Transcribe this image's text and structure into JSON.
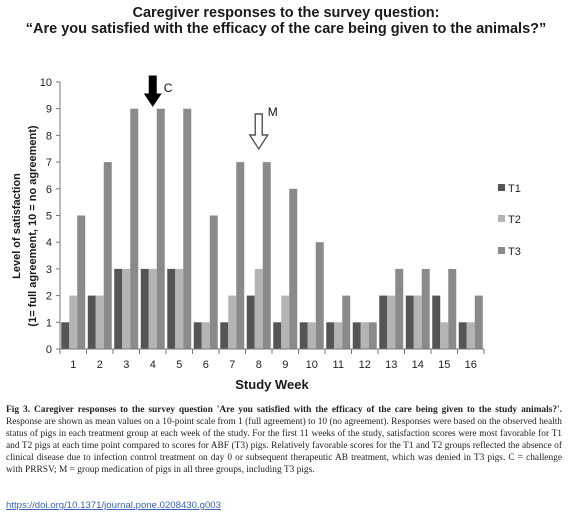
{
  "figure": {
    "caption_label": "Fig 3.",
    "caption_heading": "Caregiver responses to the survey question 'Are you satisfied with the efficacy of the care being given to the study animals?'.",
    "caption_body": "Response are shown as mean values on a 10-point scale from 1 (full agreement) to 10 (no agreement). Responses were based on the observed health status of pigs in each treatment group at each week of the study. For the first 11 weeks of the study, satisfaction scores were most favorable for T1 and T2 pigs at each time point compared to scores for ABF (T3) pigs. Relatively favorable scores for the T1 and T2 groups reflected the absence of clinical disease due to infection control treatment on day 0 or subsequent therapeutic AB treatment, which was denied in T3 pigs. C = challenge with PRRSV; M = group medication of pigs in all three groups, including T3 pigs.",
    "doi_link": "https://doi.org/10.1371/journal.pone.0208430.g003"
  },
  "chart_data": {
    "type": "bar",
    "title_line1": "Caregiver responses to the survey question:",
    "title_line2": "“Are you satisfied with the efficacy of the care being given to the animals?”",
    "xlabel": "Study Week",
    "ylabel_line1": "Level of satisfaction",
    "ylabel_line2": "(1= full agreement, 10 = no agreement)",
    "ylim": [
      0,
      10
    ],
    "yticks": [
      0,
      1,
      2,
      3,
      4,
      5,
      6,
      7,
      8,
      9,
      10
    ],
    "grid": false,
    "legend_position": "right",
    "categories": [
      "1",
      "2",
      "3",
      "4",
      "5",
      "6",
      "7",
      "8",
      "9",
      "10",
      "11",
      "12",
      "13",
      "14",
      "15",
      "16"
    ],
    "series": [
      {
        "name": "T1",
        "color": "#555555",
        "values": [
          1,
          2,
          3,
          3,
          3,
          1,
          1,
          2,
          1,
          1,
          1,
          1,
          2,
          2,
          2,
          1
        ]
      },
      {
        "name": "T2",
        "color": "#b4b4b4",
        "values": [
          2,
          2,
          3,
          3,
          3,
          1,
          2,
          3,
          2,
          1,
          1,
          1,
          2,
          2,
          1,
          1
        ]
      },
      {
        "name": "T3",
        "color": "#8a8a8a",
        "values": [
          5,
          7,
          9,
          9,
          9,
          5,
          7,
          7,
          6,
          4,
          2,
          1,
          3,
          3,
          3,
          2
        ]
      }
    ],
    "annotations": [
      {
        "label": "C",
        "week": "4",
        "style": "solid-arrow"
      },
      {
        "label": "M",
        "week": "8",
        "style": "hollow-arrow"
      }
    ]
  }
}
